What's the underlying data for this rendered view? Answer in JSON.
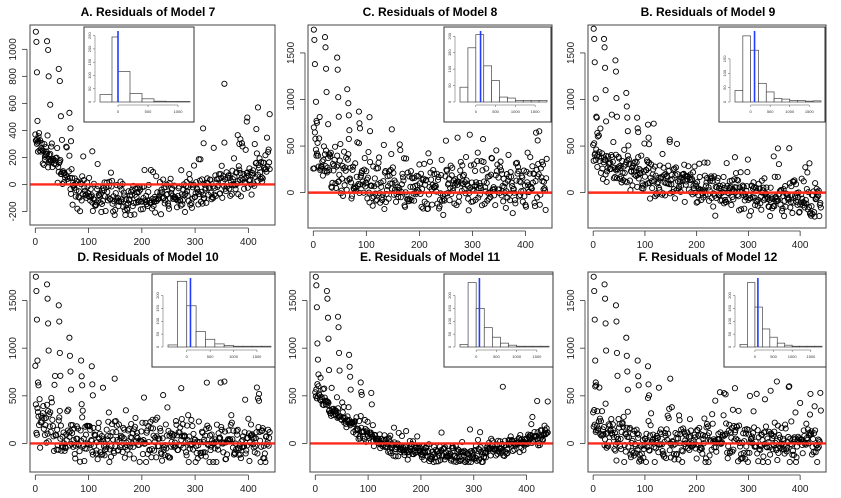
{
  "chart_data": [
    {
      "type": "scatter",
      "title": "A. Residuals of Model 7",
      "xlabel": "",
      "ylabel": "",
      "xlim": [
        -10,
        450
      ],
      "ylim": [
        -300,
        1180
      ],
      "xticks": [
        0,
        100,
        200,
        300,
        400
      ],
      "yticks": [
        -200,
        0,
        200,
        400,
        600,
        800,
        1000
      ],
      "reference_line": {
        "y": 0,
        "color": "#ff2a1a"
      },
      "n_points": 441,
      "trend": {
        "shape": "u",
        "start": 350,
        "min": -110,
        "min_at": 150,
        "end": 120,
        "spread": 90
      },
      "outliers": [
        [
          1,
          1130
        ],
        [
          2,
          1055
        ],
        [
          3,
          830
        ],
        [
          22,
          1060
        ],
        [
          24,
          995
        ],
        [
          25,
          800
        ],
        [
          28,
          590
        ],
        [
          4,
          470
        ],
        [
          5,
          310
        ],
        [
          6,
          320
        ],
        [
          44,
          855
        ],
        [
          46,
          765
        ],
        [
          48,
          505
        ],
        [
          64,
          530
        ],
        [
          66,
          415
        ],
        [
          67,
          320
        ],
        [
          50,
          330
        ],
        [
          30,
          280
        ],
        [
          107,
          245
        ],
        [
          355,
          745
        ],
        [
          315,
          415
        ],
        [
          316,
          305
        ],
        [
          398,
          495
        ],
        [
          397,
          465
        ],
        [
          418,
          570
        ],
        [
          440,
          520
        ],
        [
          415,
          410
        ],
        [
          380,
          365
        ],
        [
          385,
          335
        ],
        [
          383,
          300
        ],
        [
          20,
          225
        ],
        [
          18,
          205
        ],
        [
          26,
          165
        ]
      ],
      "inset_hist": {
        "bins": [
          -300,
          -100,
          0,
          200,
          400,
          600,
          800,
          1000,
          1200
        ],
        "counts": [
          28,
          245,
          115,
          32,
          12,
          3,
          2,
          2
        ],
        "mean_line": 0,
        "mean_color": "#1f3cff",
        "xticks": [
          0,
          500,
          1000
        ],
        "yticks": [
          0,
          50,
          100,
          150,
          200,
          250
        ],
        "ymax": 260,
        "position": "top-left"
      }
    },
    {
      "type": "scatter",
      "title": "C. Residuals of Model 8",
      "xlabel": "",
      "ylabel": "",
      "xlim": [
        -10,
        450
      ],
      "ylim": [
        -380,
        1800
      ],
      "xticks": [
        0,
        100,
        200,
        300,
        400
      ],
      "yticks": [
        0,
        500,
        1000,
        1500
      ],
      "reference_line": {
        "y": 0,
        "color": "#ff2a1a"
      },
      "n_points": 441,
      "trend": {
        "shape": "decay",
        "start": 400,
        "min": 60,
        "min_at": 150,
        "end": 60,
        "spread": 190
      },
      "outliers": [
        [
          1,
          1750
        ],
        [
          2,
          1640
        ],
        [
          3,
          1380
        ],
        [
          22,
          1670
        ],
        [
          23,
          1560
        ],
        [
          24,
          1330
        ],
        [
          25,
          1080
        ],
        [
          45,
          1450
        ],
        [
          46,
          1320
        ],
        [
          47,
          1025
        ],
        [
          5,
          975
        ],
        [
          6,
          770
        ],
        [
          7,
          750
        ],
        [
          28,
          735
        ],
        [
          64,
          1110
        ],
        [
          66,
          960
        ],
        [
          67,
          830
        ],
        [
          48,
          815
        ],
        [
          86,
          870
        ],
        [
          87,
          745
        ],
        [
          88,
          690
        ],
        [
          106,
          810
        ],
        [
          107,
          660
        ],
        [
          68,
          670
        ],
        [
          148,
          680
        ],
        [
          272,
          590
        ],
        [
          423,
          560
        ]
      ],
      "inset_hist": {
        "bins": [
          -400,
          -200,
          0,
          200,
          400,
          600,
          800,
          1000,
          1200,
          1400,
          1600,
          1800
        ],
        "counts": [
          45,
          165,
          205,
          110,
          65,
          15,
          12,
          5,
          5,
          4,
          5
        ],
        "mean_line": 120,
        "mean_color": "#1f3cff",
        "xticks": [
          0,
          500,
          1000,
          1500
        ],
        "yticks": [
          0,
          50,
          100,
          150,
          200
        ],
        "ymax": 210,
        "position": "top-right"
      }
    },
    {
      "type": "scatter",
      "title": "B. Residuals of Model 9",
      "xlabel": "",
      "ylabel": "",
      "xlim": [
        -10,
        450
      ],
      "ylim": [
        -380,
        1800
      ],
      "xticks": [
        0,
        100,
        200,
        300,
        400
      ],
      "yticks": [
        0,
        500,
        1000,
        1500
      ],
      "reference_line": {
        "y": 0,
        "color": "#ff2a1a"
      },
      "n_points": 441,
      "trend": {
        "shape": "decay",
        "start": 380,
        "min": -60,
        "min_at": 400,
        "end": -120,
        "spread": 150
      },
      "outliers": [
        [
          1,
          1760
        ],
        [
          2,
          1650
        ],
        [
          3,
          1400
        ],
        [
          21,
          1650
        ],
        [
          22,
          1560
        ],
        [
          23,
          1340
        ],
        [
          24,
          1100
        ],
        [
          43,
          1420
        ],
        [
          44,
          1300
        ],
        [
          45,
          1015
        ],
        [
          5,
          1010
        ],
        [
          6,
          815
        ],
        [
          7,
          805
        ],
        [
          25,
          765
        ],
        [
          8,
          640
        ],
        [
          64,
          1070
        ],
        [
          65,
          925
        ],
        [
          66,
          805
        ],
        [
          67,
          660
        ],
        [
          46,
          815
        ],
        [
          85,
          805
        ],
        [
          86,
          690
        ],
        [
          87,
          650
        ],
        [
          106,
          730
        ],
        [
          107,
          590
        ],
        [
          108,
          520
        ],
        [
          148,
          570
        ],
        [
          357,
          475
        ],
        [
          274,
          380
        ]
      ],
      "inset_hist": {
        "bins": [
          -400,
          -200,
          0,
          200,
          400,
          600,
          800,
          1000,
          1200,
          1400,
          1600,
          1800
        ],
        "counts": [
          40,
          230,
          180,
          65,
          35,
          12,
          10,
          5,
          5,
          3,
          4
        ],
        "mean_line": 100,
        "mean_color": "#1f3cff",
        "xticks": [
          0,
          500,
          1000,
          1500
        ],
        "yticks": [
          0,
          50,
          100,
          150
        ],
        "ymax": 240,
        "position": "top-right"
      }
    },
    {
      "type": "scatter",
      "title": "D. Residuals of Model 10",
      "xlabel": "",
      "ylabel": "",
      "xlim": [
        -10,
        450
      ],
      "ylim": [
        -300,
        1800
      ],
      "xticks": [
        0,
        100,
        200,
        300,
        400
      ],
      "yticks": [
        0,
        500,
        1000,
        1500
      ],
      "reference_line": {
        "y": 0,
        "color": "#ff2a1a"
      },
      "n_points": 441,
      "trend": {
        "shape": "decay",
        "start": 230,
        "min": 10,
        "min_at": 120,
        "end": 20,
        "spread": 170
      },
      "outliers": [
        [
          1,
          1750
        ],
        [
          2,
          1600
        ],
        [
          3,
          1300
        ],
        [
          22,
          1670
        ],
        [
          23,
          1520
        ],
        [
          24,
          1260
        ],
        [
          44,
          1450
        ],
        [
          45,
          1280
        ],
        [
          4,
          870
        ],
        [
          25,
          975
        ],
        [
          5,
          640
        ],
        [
          6,
          610
        ],
        [
          46,
          950
        ],
        [
          47,
          710
        ],
        [
          64,
          1110
        ],
        [
          65,
          920
        ],
        [
          66,
          755
        ],
        [
          67,
          565
        ],
        [
          86,
          870
        ],
        [
          87,
          705
        ],
        [
          88,
          610
        ],
        [
          106,
          810
        ],
        [
          107,
          620
        ],
        [
          108,
          505
        ],
        [
          127,
          585
        ],
        [
          149,
          680
        ],
        [
          355,
          650
        ],
        [
          274,
          580
        ],
        [
          420,
          520
        ]
      ],
      "inset_hist": {
        "bins": [
          -400,
          -200,
          0,
          200,
          400,
          600,
          800,
          1000,
          1200,
          1400,
          1600,
          1800
        ],
        "counts": [
          8,
          255,
          160,
          60,
          30,
          12,
          6,
          3,
          3,
          3,
          3
        ],
        "mean_line": 80,
        "mean_color": "#1f3cff",
        "xticks": [
          0,
          500,
          1000,
          1500
        ],
        "yticks": [
          0,
          50,
          100,
          150,
          200
        ],
        "ymax": 260,
        "position": "top-right"
      }
    },
    {
      "type": "scatter",
      "title": "E. Residuals of Model 11",
      "xlabel": "",
      "ylabel": "",
      "xlim": [
        -10,
        450
      ],
      "ylim": [
        -300,
        1800
      ],
      "xticks": [
        0,
        100,
        200,
        300,
        400
      ],
      "yticks": [
        0,
        500,
        1000,
        1500
      ],
      "reference_line": {
        "y": 0,
        "color": "#ff2a1a"
      },
      "n_points": 441,
      "trend": {
        "shape": "u",
        "start": 520,
        "min": -130,
        "min_at": 260,
        "end": 120,
        "spread": 70
      },
      "outliers": [
        [
          1,
          1750
        ],
        [
          2,
          1660
        ],
        [
          3,
          1430
        ],
        [
          22,
          1600
        ],
        [
          23,
          1520
        ],
        [
          24,
          1320
        ],
        [
          25,
          1100
        ],
        [
          43,
          1330
        ],
        [
          44,
          1220
        ],
        [
          45,
          950
        ],
        [
          4,
          1050
        ],
        [
          5,
          880
        ],
        [
          6,
          725
        ],
        [
          26,
          770
        ],
        [
          46,
          765
        ],
        [
          64,
          930
        ],
        [
          65,
          805
        ],
        [
          66,
          700
        ],
        [
          67,
          565
        ],
        [
          86,
          640
        ],
        [
          87,
          540
        ],
        [
          88,
          510
        ],
        [
          106,
          530
        ],
        [
          107,
          410
        ],
        [
          355,
          595
        ],
        [
          440,
          440
        ],
        [
          420,
          445
        ]
      ],
      "inset_hist": {
        "bins": [
          -400,
          -200,
          0,
          200,
          400,
          600,
          800,
          1000,
          1200,
          1400,
          1600,
          1800
        ],
        "counts": [
          10,
          250,
          150,
          75,
          38,
          15,
          7,
          3,
          3,
          3,
          3
        ],
        "mean_line": 80,
        "mean_color": "#1f3cff",
        "xticks": [
          0,
          500,
          1000,
          1500
        ],
        "yticks": [
          0,
          50,
          100,
          150,
          200
        ],
        "ymax": 260,
        "position": "top-right"
      }
    },
    {
      "type": "scatter",
      "title": "F. Residuals of Model 12",
      "xlabel": "",
      "ylabel": "",
      "xlim": [
        -10,
        450
      ],
      "ylim": [
        -300,
        1800
      ],
      "xticks": [
        0,
        100,
        200,
        300,
        400
      ],
      "yticks": [
        0,
        500,
        1000,
        1500
      ],
      "reference_line": {
        "y": 0,
        "color": "#ff2a1a"
      },
      "n_points": 441,
      "trend": {
        "shape": "decay",
        "start": 230,
        "min": 10,
        "min_at": 120,
        "end": 20,
        "spread": 170
      },
      "outliers": [
        [
          1,
          1750
        ],
        [
          2,
          1600
        ],
        [
          3,
          1300
        ],
        [
          22,
          1670
        ],
        [
          23,
          1520
        ],
        [
          24,
          1260
        ],
        [
          44,
          1450
        ],
        [
          45,
          1280
        ],
        [
          4,
          870
        ],
        [
          25,
          975
        ],
        [
          5,
          640
        ],
        [
          6,
          610
        ],
        [
          46,
          950
        ],
        [
          47,
          710
        ],
        [
          64,
          1110
        ],
        [
          65,
          920
        ],
        [
          66,
          755
        ],
        [
          67,
          565
        ],
        [
          86,
          870
        ],
        [
          87,
          705
        ],
        [
          88,
          610
        ],
        [
          106,
          810
        ],
        [
          107,
          620
        ],
        [
          108,
          505
        ],
        [
          127,
          585
        ],
        [
          149,
          680
        ],
        [
          355,
          650
        ],
        [
          274,
          580
        ],
        [
          420,
          520
        ]
      ],
      "inset_hist": {
        "bins": [
          -400,
          -200,
          0,
          200,
          400,
          600,
          800,
          1000,
          1200,
          1400,
          1600,
          1800
        ],
        "counts": [
          10,
          250,
          155,
          70,
          38,
          15,
          7,
          3,
          3,
          3,
          3
        ],
        "mean_line": 80,
        "mean_color": "#1f3cff",
        "xticks": [
          0,
          500,
          1000,
          1500
        ],
        "yticks": [
          0,
          50,
          100,
          150,
          200
        ],
        "ymax": 260,
        "position": "top-right"
      }
    }
  ]
}
